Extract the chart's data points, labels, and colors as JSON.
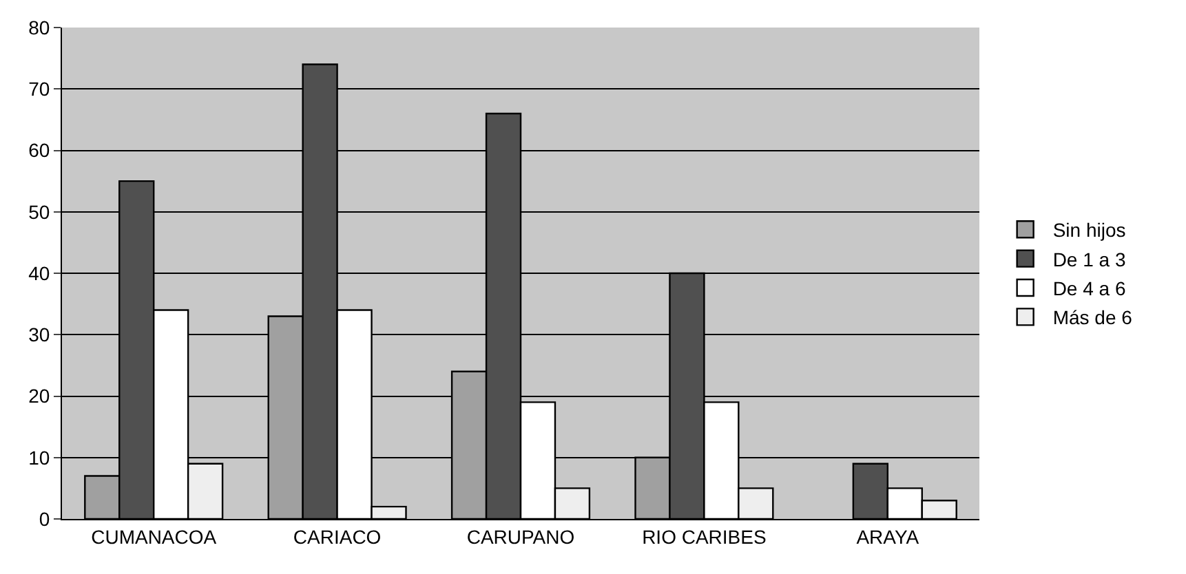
{
  "chart_data": {
    "type": "bar",
    "categories": [
      "CUMANACOA",
      "CARIACO",
      "CARUPANO",
      "RIO CARIBES",
      "ARAYA"
    ],
    "series": [
      {
        "name": "Sin hijos",
        "color": "#a0a0a0",
        "values": [
          7,
          33,
          24,
          10,
          0
        ]
      },
      {
        "name": "De 1 a 3",
        "color": "#505050",
        "values": [
          55,
          74,
          66,
          40,
          9
        ]
      },
      {
        "name": "De 4 a 6",
        "color": "#ffffff",
        "values": [
          34,
          34,
          19,
          19,
          5
        ]
      },
      {
        "name": "Más de 6",
        "color": "#eeeeee",
        "values": [
          9,
          2,
          5,
          5,
          3
        ]
      }
    ],
    "ylim": [
      0,
      80
    ],
    "yticks": [
      0,
      10,
      20,
      30,
      40,
      50,
      60,
      70,
      80
    ],
    "grid": "y",
    "legend": "right"
  }
}
